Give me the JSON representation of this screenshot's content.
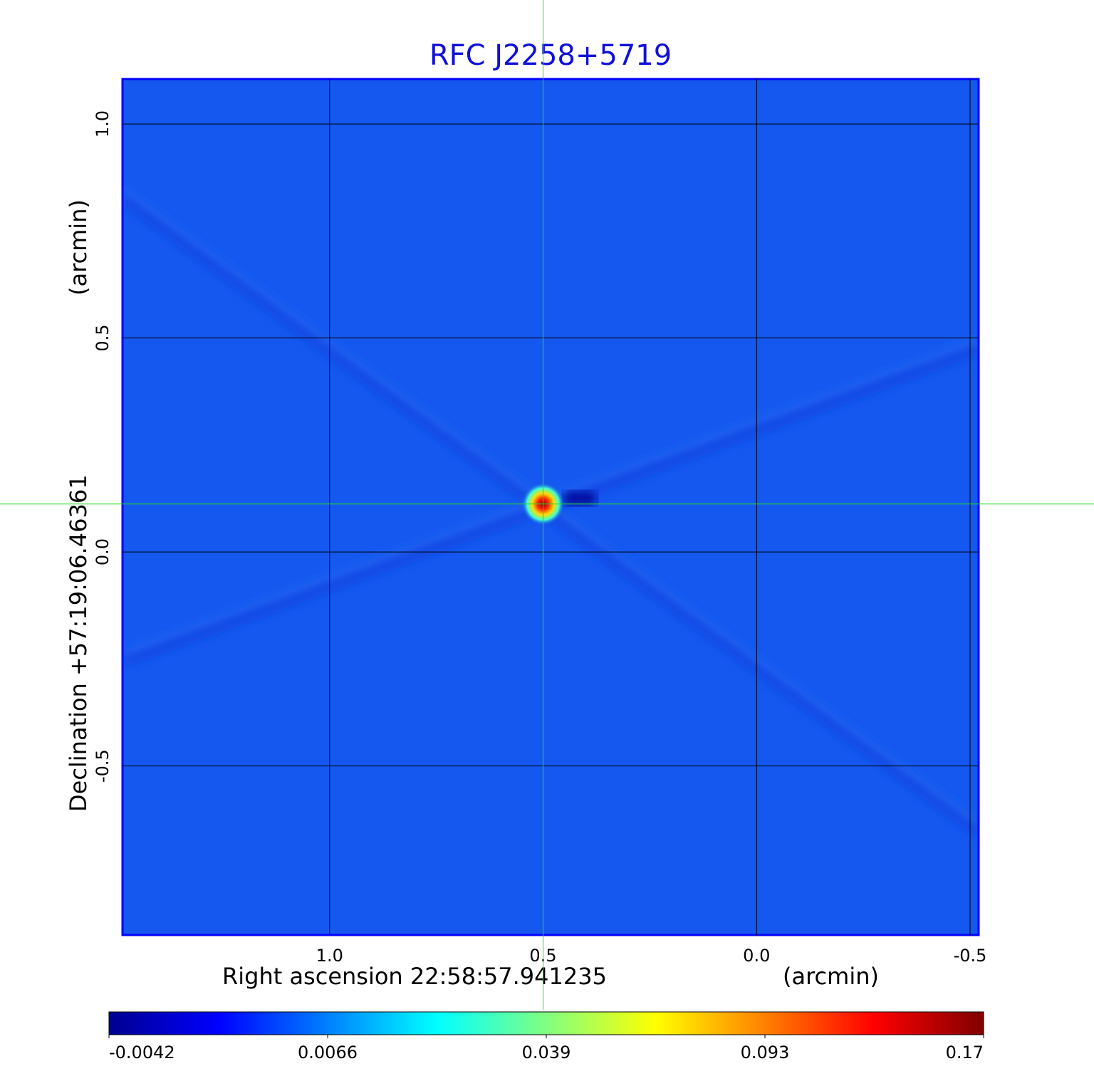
{
  "chart_data": {
    "type": "heatmap",
    "title": "RFC J2258+5719",
    "xlabel": "Right ascension  22:58:57.941235",
    "xunit": "(arcmin)",
    "ylabel": "Declination  +57:19:06.46361",
    "yunit": "(arcmin)",
    "x_ticks": [
      1.0,
      0.5,
      0.0,
      -0.5
    ],
    "x_tick_labels": [
      "1.0",
      "0.5",
      "0.0",
      "-0.5"
    ],
    "y_ticks": [
      1.0,
      0.5,
      0.0,
      -0.5
    ],
    "y_tick_labels": [
      "1.0",
      "0.5",
      "0.0",
      "-0.5"
    ],
    "xlim": [
      1.485,
      -0.52
    ],
    "ylim": [
      -0.895,
      1.105
    ],
    "grid": true,
    "crosshair": {
      "x": 0.5,
      "y": 0.112,
      "color": "#22dd22"
    },
    "colorbar": {
      "ticks": [
        "-0.0042",
        "0.0066",
        "0.039",
        "0.093",
        "0.17"
      ],
      "colors": [
        "#00008f",
        "#0000ff",
        "#0080ff",
        "#00ffff",
        "#80ff80",
        "#ffff00",
        "#ff8000",
        "#ff0000",
        "#800000"
      ]
    },
    "background_color": "#1558f0",
    "source": {
      "x": 0.5,
      "y": 0.112,
      "peak": 0.17
    },
    "sidelobes": [
      {
        "from": [
          1.48,
          0.83
        ],
        "to": [
          -0.52,
          -0.65
        ],
        "color": "#0c44e0"
      },
      {
        "from": [
          1.48,
          -0.25
        ],
        "to": [
          -0.52,
          0.48
        ],
        "color": "#0c44e0"
      }
    ]
  }
}
